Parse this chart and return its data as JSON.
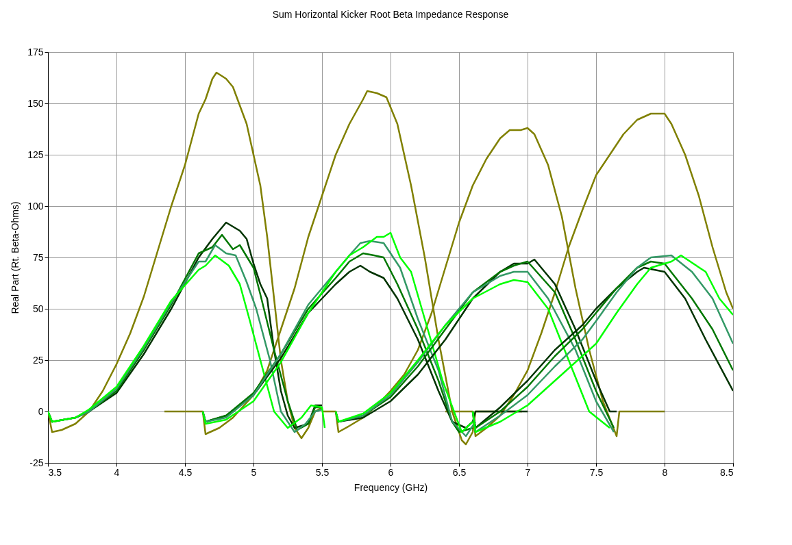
{
  "chart_data": {
    "type": "line",
    "title": "Sum Horizontal Kicker Root Beta Impedance Response",
    "xlabel": "Frequency (GHz)",
    "ylabel": "Real Part (Rt. Beta-Ohms)",
    "xlim": [
      3.5,
      8.5
    ],
    "xticks": [
      3.5,
      4,
      4.5,
      5,
      5.5,
      6,
      6.5,
      7,
      7.5,
      8,
      8.5
    ],
    "ylim": [
      -25,
      175
    ],
    "yticks": [
      -25,
      0,
      25,
      50,
      75,
      100,
      125,
      150,
      175
    ],
    "grid": true,
    "legend": false,
    "marker": "none",
    "line_style": "solid",
    "series": [
      {
        "color": "#808000",
        "x": [
          3.5,
          3.53,
          3.6,
          3.7,
          3.8,
          3.9,
          4.0,
          4.1,
          4.2,
          4.3,
          4.4,
          4.5,
          4.6,
          4.65,
          4.7,
          4.73,
          4.8,
          4.85,
          4.95,
          5.05,
          5.1,
          5.15,
          5.2,
          5.25,
          5.3,
          5.35,
          5.4,
          5.45,
          5.5
        ],
        "values": [
          0,
          -10,
          -9,
          -6,
          0,
          10,
          23,
          38,
          56,
          78,
          100,
          120,
          145,
          152,
          162,
          165,
          162,
          158,
          140,
          110,
          85,
          55,
          25,
          5,
          -8,
          -13,
          -8,
          0,
          2
        ]
      },
      {
        "color": "#808000",
        "x": [
          4.35,
          4.63,
          4.65,
          4.75,
          4.85,
          5.0,
          5.1,
          5.2,
          5.3,
          5.4,
          5.5,
          5.6,
          5.7,
          5.8,
          5.83,
          5.9,
          5.97,
          6.05,
          6.15,
          6.25,
          6.35,
          6.45,
          6.52,
          6.55,
          6.6,
          6.62,
          6.96
        ],
        "values": [
          0,
          0,
          -11,
          -8,
          -3,
          8,
          20,
          40,
          60,
          85,
          105,
          125,
          140,
          152,
          156,
          155,
          153,
          140,
          110,
          75,
          35,
          0,
          -14,
          -16,
          -10,
          0,
          0
        ]
      },
      {
        "color": "#808000",
        "x": [
          5.5,
          5.6,
          5.62,
          5.7,
          5.8,
          5.9,
          6.0,
          6.1,
          6.2,
          6.3,
          6.4,
          6.5,
          6.6,
          6.7,
          6.8,
          6.87,
          6.95,
          7.0,
          7.05,
          7.15,
          7.25,
          7.35,
          7.45,
          7.55,
          7.65,
          7.67,
          8.0
        ],
        "values": [
          0,
          0,
          -10,
          -7,
          -3,
          3,
          10,
          18,
          30,
          48,
          70,
          92,
          110,
          123,
          133,
          137,
          137,
          138,
          135,
          120,
          95,
          60,
          30,
          5,
          -12,
          0,
          0
        ]
      },
      {
        "color": "#808000",
        "x": [
          6.4,
          6.6,
          6.62,
          6.7,
          6.8,
          6.9,
          7.0,
          7.1,
          7.2,
          7.3,
          7.4,
          7.5,
          7.6,
          7.7,
          7.8,
          7.9,
          7.95,
          8.0,
          8.05,
          8.15,
          8.25,
          8.35,
          8.45,
          8.5
        ],
        "values": [
          0,
          0,
          -12,
          -8,
          -2,
          8,
          20,
          38,
          58,
          80,
          98,
          115,
          125,
          135,
          142,
          145,
          145,
          145,
          140,
          125,
          105,
          80,
          58,
          50
        ]
      },
      {
        "color": "#003300",
        "x": [
          3.5,
          3.53,
          3.7,
          3.8,
          4.0,
          4.2,
          4.4,
          4.6,
          4.7,
          4.8,
          4.85,
          4.9,
          4.95,
          5.0,
          5.05,
          5.1,
          5.15,
          5.2,
          5.25,
          5.3,
          5.35,
          5.4,
          5.45,
          5.5
        ],
        "values": [
          0,
          -5,
          -3,
          0,
          9,
          28,
          50,
          75,
          84,
          92,
          90,
          88,
          84,
          72,
          62,
          55,
          30,
          10,
          -2,
          -8,
          -7,
          -6,
          3,
          3
        ]
      },
      {
        "color": "#007700",
        "x": [
          3.5,
          3.53,
          3.7,
          3.8,
          4.0,
          4.2,
          4.4,
          4.6,
          4.7,
          4.77,
          4.85,
          4.9,
          5.0,
          5.05,
          5.15,
          5.25,
          5.32,
          5.4,
          5.45,
          5.5
        ],
        "values": [
          0,
          -5,
          -3,
          0,
          10,
          30,
          52,
          77,
          80,
          86,
          79,
          81,
          70,
          57,
          30,
          5,
          -9,
          -6,
          2,
          2
        ]
      },
      {
        "color": "#339966",
        "x": [
          3.5,
          3.53,
          3.7,
          3.8,
          4.0,
          4.2,
          4.4,
          4.6,
          4.65,
          4.72,
          4.8,
          4.87,
          4.95,
          5.02,
          5.12,
          5.2,
          5.3,
          5.38,
          5.45,
          5.5
        ],
        "values": [
          0,
          -5,
          -3,
          0,
          11,
          31,
          53,
          73,
          73,
          81,
          77,
          76,
          63,
          50,
          25,
          0,
          -10,
          -6,
          0,
          1
        ]
      },
      {
        "color": "#00ff00",
        "x": [
          3.5,
          3.53,
          3.7,
          3.8,
          4.0,
          4.2,
          4.4,
          4.6,
          4.65,
          4.72,
          4.82,
          4.9,
          4.97,
          5.07,
          5.15,
          5.25,
          5.35,
          5.42,
          5.5,
          5.52
        ],
        "values": [
          0,
          -5,
          -3,
          1,
          12,
          32,
          54,
          69,
          71,
          76,
          71,
          62,
          45,
          20,
          0,
          -8,
          -3,
          3,
          2,
          -8
        ]
      },
      {
        "color": "#003300",
        "x": [
          4.63,
          4.65,
          4.8,
          5.0,
          5.2,
          5.4,
          5.6,
          5.7,
          5.78,
          5.85,
          5.95,
          6.05,
          6.2,
          6.35,
          6.45,
          6.55,
          6.6,
          6.62,
          7.0
        ],
        "values": [
          0,
          -5,
          -2,
          8,
          26,
          48,
          62,
          68,
          71,
          68,
          65,
          55,
          35,
          10,
          -5,
          -8,
          -5,
          0,
          0
        ]
      },
      {
        "color": "#007700",
        "x": [
          4.63,
          4.65,
          4.8,
          5.0,
          5.2,
          5.4,
          5.6,
          5.7,
          5.8,
          5.88,
          5.95,
          6.05,
          6.2,
          6.35,
          6.45,
          6.5,
          6.6
        ],
        "values": [
          0,
          -5,
          -2,
          9,
          28,
          50,
          65,
          73,
          77,
          76,
          75,
          62,
          40,
          15,
          -5,
          -10,
          -8
        ]
      },
      {
        "color": "#339966",
        "x": [
          4.63,
          4.65,
          4.8,
          5.0,
          5.2,
          5.4,
          5.6,
          5.7,
          5.78,
          5.85,
          5.95,
          6.07,
          6.2,
          6.35,
          6.45,
          6.55,
          6.62
        ],
        "values": [
          0,
          -5,
          -3,
          8,
          28,
          52,
          68,
          76,
          82,
          83,
          82,
          70,
          45,
          20,
          -5,
          -12,
          -5
        ]
      },
      {
        "color": "#00ff00",
        "x": [
          4.63,
          4.65,
          4.8,
          5.0,
          5.2,
          5.4,
          5.6,
          5.7,
          5.8,
          5.9,
          5.95,
          6.0,
          6.07,
          6.15,
          6.25,
          6.38,
          6.48,
          6.52,
          6.6
        ],
        "values": [
          0,
          -6,
          -4,
          5,
          24,
          48,
          68,
          76,
          80,
          85,
          85,
          87,
          75,
          68,
          45,
          15,
          -3,
          -10,
          -5
        ]
      },
      {
        "color": "#003300",
        "x": [
          5.6,
          5.62,
          5.8,
          6.0,
          6.2,
          6.4,
          6.6,
          6.8,
          6.9,
          7.0,
          7.05,
          7.2,
          7.35,
          7.5,
          7.6,
          7.65
        ],
        "values": [
          0,
          -5,
          -3,
          5,
          18,
          35,
          55,
          68,
          72,
          72,
          74,
          62,
          40,
          15,
          0,
          0
        ]
      },
      {
        "color": "#007700",
        "x": [
          5.6,
          5.62,
          5.8,
          6.0,
          6.2,
          6.4,
          6.6,
          6.8,
          6.9,
          7.0,
          7.2,
          7.35,
          7.5,
          7.63
        ],
        "values": [
          0,
          -5,
          -2,
          7,
          22,
          40,
          58,
          68,
          71,
          73,
          58,
          35,
          10,
          -8
        ]
      },
      {
        "color": "#339966",
        "x": [
          5.6,
          5.62,
          5.8,
          6.0,
          6.2,
          6.4,
          6.6,
          6.8,
          6.9,
          7.0,
          7.15,
          7.35,
          7.5,
          7.63
        ],
        "values": [
          0,
          -5,
          -2,
          8,
          24,
          42,
          58,
          66,
          68,
          68,
          55,
          30,
          5,
          -10
        ]
      },
      {
        "color": "#00ff00",
        "x": [
          5.6,
          5.62,
          5.8,
          6.0,
          6.2,
          6.4,
          6.6,
          6.8,
          6.9,
          7.0,
          7.15,
          7.3,
          7.45,
          7.6
        ],
        "values": [
          0,
          -5,
          -1,
          9,
          25,
          42,
          55,
          62,
          64,
          63,
          50,
          25,
          0,
          -8
        ]
      },
      {
        "color": "#003300",
        "x": [
          6.6,
          6.62,
          6.8,
          7.0,
          7.2,
          7.4,
          7.5,
          7.65,
          7.8,
          7.85,
          8.0,
          8.15,
          8.3,
          8.5
        ],
        "values": [
          0,
          -8,
          2,
          15,
          30,
          42,
          50,
          60,
          68,
          70,
          68,
          55,
          35,
          10
        ]
      },
      {
        "color": "#007700",
        "x": [
          6.6,
          6.62,
          6.8,
          7.0,
          7.2,
          7.4,
          7.5,
          7.65,
          7.8,
          7.9,
          8.0,
          8.2,
          8.35,
          8.5
        ],
        "values": [
          0,
          -8,
          0,
          12,
          27,
          40,
          48,
          60,
          70,
          73,
          72,
          55,
          40,
          20
        ]
      },
      {
        "color": "#339966",
        "x": [
          6.6,
          6.62,
          6.8,
          7.0,
          7.2,
          7.4,
          7.5,
          7.65,
          7.8,
          7.9,
          8.05,
          8.2,
          8.35,
          8.5
        ],
        "values": [
          0,
          -10,
          -2,
          8,
          22,
          35,
          44,
          58,
          70,
          75,
          76,
          68,
          55,
          33
        ]
      },
      {
        "color": "#00ff00",
        "x": [
          6.6,
          6.62,
          6.8,
          7.0,
          7.2,
          7.4,
          7.5,
          7.65,
          7.8,
          7.9,
          8.05,
          8.12,
          8.3,
          8.4,
          8.5
        ],
        "values": [
          0,
          -10,
          -5,
          3,
          15,
          27,
          33,
          48,
          62,
          70,
          73,
          76,
          68,
          55,
          47
        ]
      }
    ]
  }
}
